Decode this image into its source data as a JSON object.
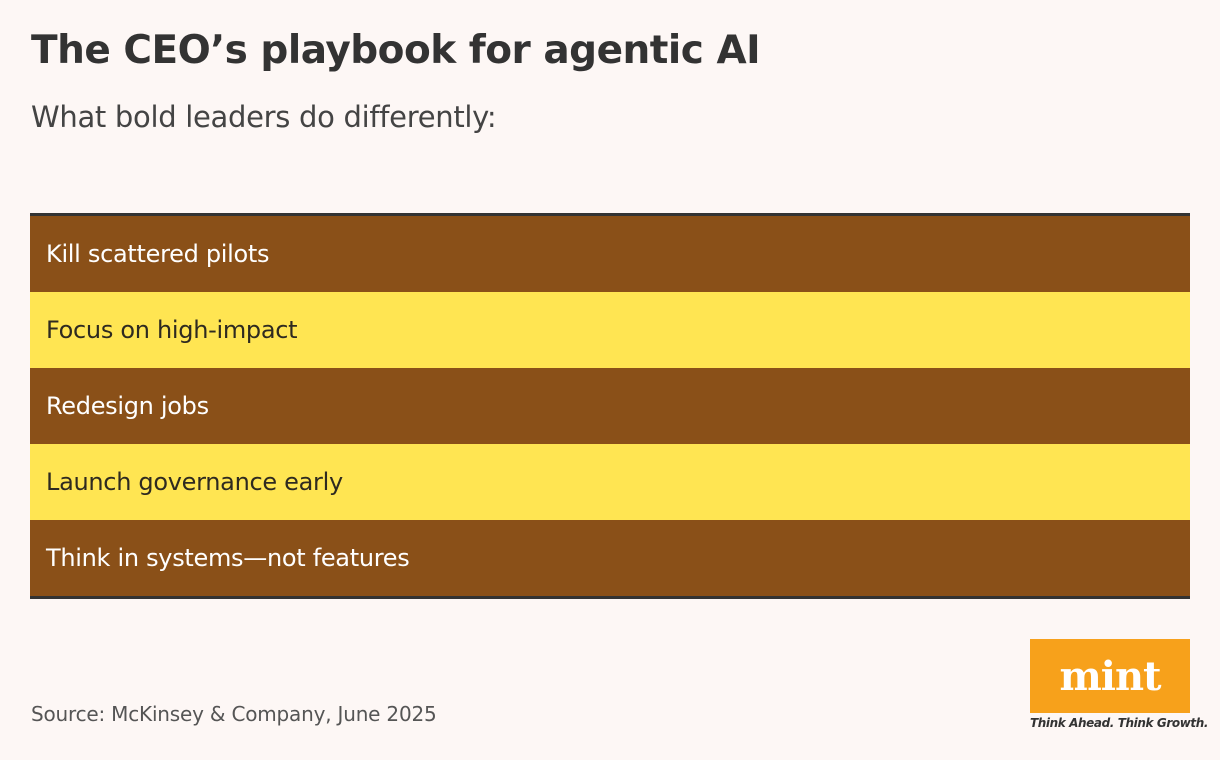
{
  "header": {
    "title": "The CEO’s playbook for agentic AI",
    "subtitle": "What bold leaders do differently:"
  },
  "list": {
    "items": [
      {
        "label": "Kill scattered pilots",
        "color": "#8a5018"
      },
      {
        "label": "Focus on high-impact",
        "color": "#ffe552"
      },
      {
        "label": "Redesign jobs",
        "color": "#8a5018"
      },
      {
        "label": "Launch governance early",
        "color": "#ffe552"
      },
      {
        "label": "Think in systems—not features",
        "color": "#8a5018"
      }
    ]
  },
  "footer": {
    "source": "Source: McKinsey & Company, June 2025",
    "logo": "mint",
    "tagline": "Think Ahead. Think Growth.",
    "logo_color": "#f7a11b"
  }
}
